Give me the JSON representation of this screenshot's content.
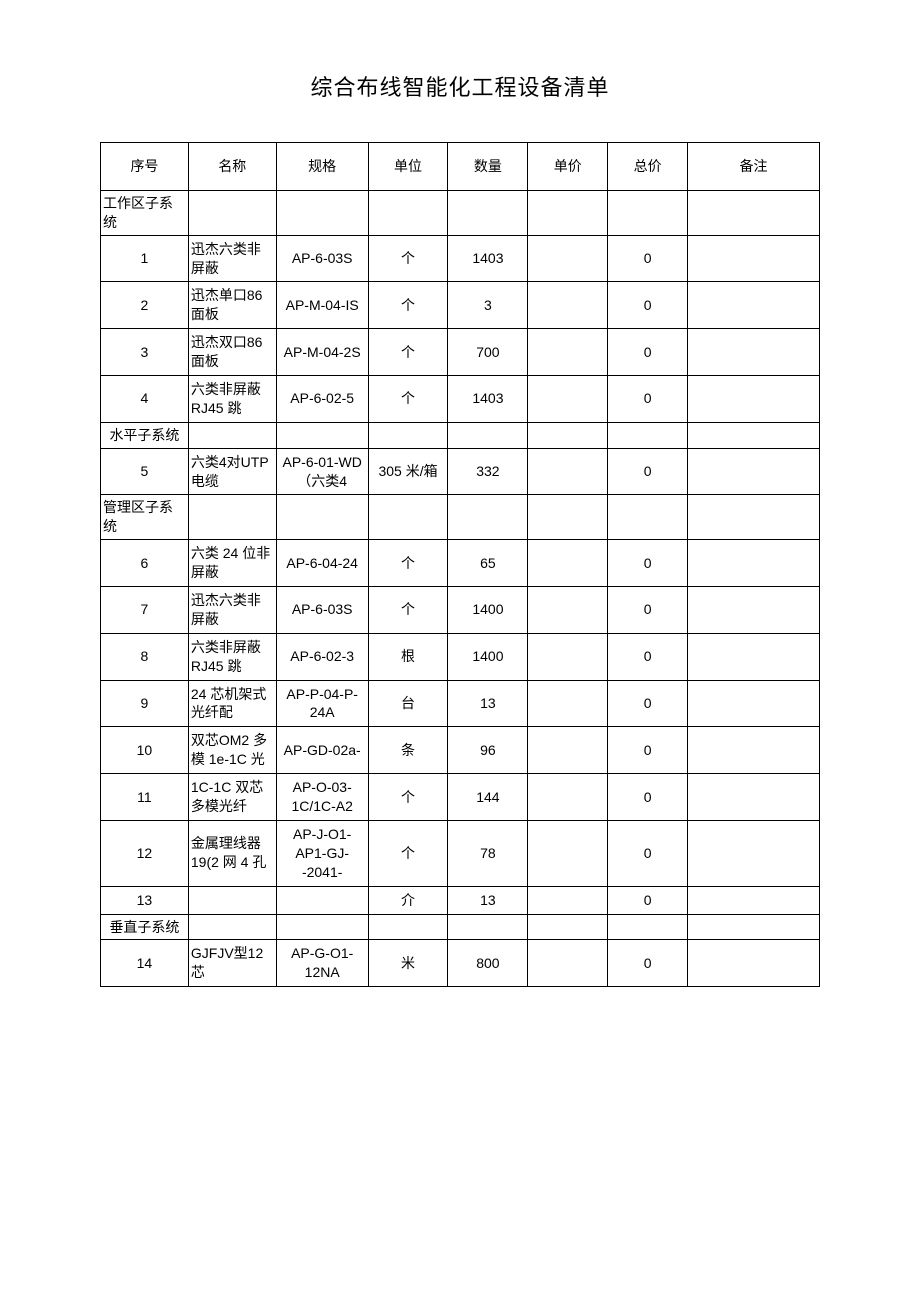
{
  "title": "综合布线智能化工程设备清单",
  "headers": {
    "seq": "序号",
    "name": "名称",
    "spec": "规格",
    "unit": "单位",
    "qty": "数量",
    "price": "单价",
    "total": "总价",
    "remark": "备注"
  },
  "table": {
    "column_widths_pct": [
      11,
      11,
      11.5,
      10,
      10,
      10,
      10,
      16.5
    ],
    "border_color": "#000000",
    "background_color": "#ffffff",
    "font_size_pt": 11,
    "title_font_size_pt": 17
  },
  "rows": [
    {
      "type": "section",
      "seq": "工作区子系统"
    },
    {
      "type": "item",
      "seq": "1",
      "name": "迅杰六类非屏蔽",
      "spec": "AP-6-03S",
      "unit": "个",
      "qty": "1403",
      "price": "",
      "total": "0",
      "remark": ""
    },
    {
      "type": "item",
      "seq": "2",
      "name": "迅杰单口86 面板",
      "spec": "AP-M-04-IS",
      "unit": "个",
      "qty": "3",
      "price": "",
      "total": "0",
      "remark": ""
    },
    {
      "type": "item",
      "seq": "3",
      "name": "迅杰双口86 面板",
      "spec": "AP-M-04-2S",
      "unit": "个",
      "qty": "700",
      "price": "",
      "total": "0",
      "remark": ""
    },
    {
      "type": "item",
      "seq": "4",
      "name": "六类非屏蔽 RJ45 跳",
      "spec": "AP-6-02-5",
      "unit": "个",
      "qty": "1403",
      "price": "",
      "total": "0",
      "remark": ""
    },
    {
      "type": "section",
      "seq": "水平子系统"
    },
    {
      "type": "item",
      "seq": "5",
      "name": "六类4对UTP 电缆",
      "spec": "AP-6-01-WD（六类4",
      "unit": "305 米/箱",
      "qty": "332",
      "price": "",
      "total": "0",
      "remark": ""
    },
    {
      "type": "section",
      "seq": "管理区子系统"
    },
    {
      "type": "item",
      "seq": "6",
      "name": "六类 24 位非屏蔽",
      "spec": "AP-6-04-24",
      "unit": "个",
      "qty": "65",
      "price": "",
      "total": "0",
      "remark": ""
    },
    {
      "type": "item",
      "seq": "7",
      "name": "迅杰六类非屏蔽",
      "spec": "AP-6-03S",
      "unit": "个",
      "qty": "1400",
      "price": "",
      "total": "0",
      "remark": ""
    },
    {
      "type": "item",
      "seq": "8",
      "name": "六类非屏蔽 RJ45 跳",
      "spec": "AP-6-02-3",
      "unit": "根",
      "qty": "1400",
      "price": "",
      "total": "0",
      "remark": ""
    },
    {
      "type": "item",
      "seq": "9",
      "name": "24 芯机架式光纤配",
      "spec": "AP-P-04-P-24A",
      "unit": "台",
      "qty": "13",
      "price": "",
      "total": "0",
      "remark": ""
    },
    {
      "type": "item",
      "seq": "10",
      "name": "双芯OM2 多模 1e-1C 光",
      "spec": "AP-GD-02a-",
      "unit": "条",
      "qty": "96",
      "price": "",
      "total": "0",
      "remark": ""
    },
    {
      "type": "item",
      "seq": "11",
      "name": "1C-1C 双芯多模光纤",
      "spec": "AP-O-03-1C/1C-A2",
      "unit": "个",
      "qty": "144",
      "price": "",
      "total": "0",
      "remark": ""
    },
    {
      "type": "item",
      "seq": "12",
      "name": "金属理线器   19(2 网 4 孔",
      "spec": "AP-J-O1-AP1-GJ--2041-",
      "unit": "个",
      "qty": "78",
      "price": "",
      "total": "0",
      "remark": ""
    },
    {
      "type": "item",
      "seq": "13",
      "name": "",
      "spec": "",
      "unit": "介",
      "qty": "13",
      "price": "",
      "total": "0",
      "remark": ""
    },
    {
      "type": "section",
      "seq": "垂直子系统"
    },
    {
      "type": "item",
      "seq": "14",
      "name": "GJFJV型12芯",
      "spec": "AP-G-O1-12NA",
      "unit": "米",
      "qty": "800",
      "price": "",
      "total": "0",
      "remark": ""
    }
  ]
}
